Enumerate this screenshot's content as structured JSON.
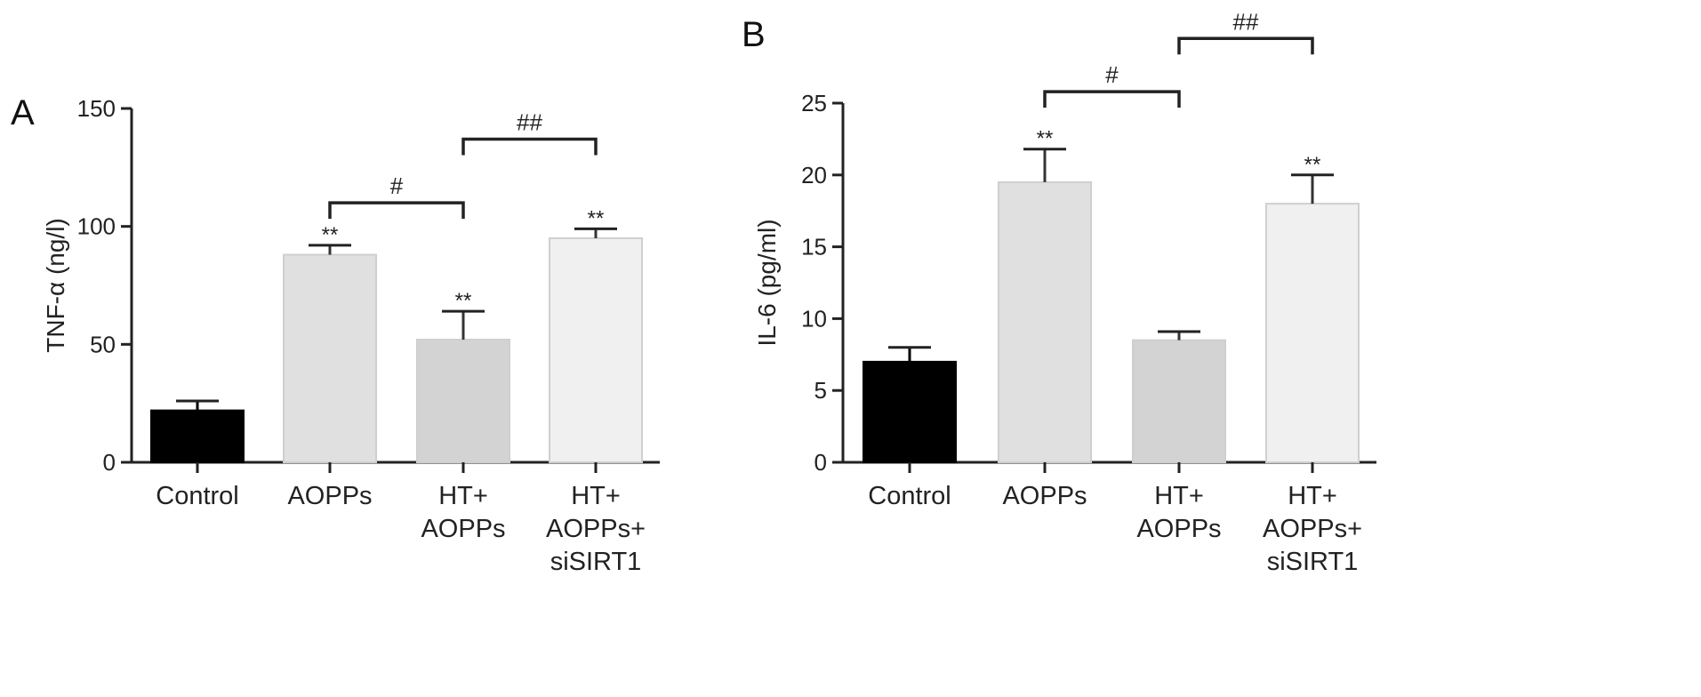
{
  "chart_data": [
    {
      "type": "bar",
      "panel": "A",
      "ylabel": "TNF-α (ng/l)",
      "ylim": [
        0,
        150
      ],
      "yticks": [
        0,
        50,
        100,
        150
      ],
      "categories": [
        [
          "Control"
        ],
        [
          "AOPPs"
        ],
        [
          "HT+",
          "AOPPs"
        ],
        [
          "HT+",
          "AOPPs+",
          "siSIRT1"
        ]
      ],
      "values": [
        22,
        88,
        52,
        95
      ],
      "errors": [
        4,
        4,
        12,
        4
      ],
      "bar_colors": [
        "#000000",
        "#e0e0e0",
        "#d3d3d3",
        "#f0f0f0"
      ],
      "significance": [
        "",
        "**",
        "**",
        "**"
      ],
      "brackets": [
        {
          "from": 1,
          "to": 2,
          "label": "#",
          "y": 110
        },
        {
          "from": 2,
          "to": 3,
          "label": "##",
          "y": 137
        }
      ]
    },
    {
      "type": "bar",
      "panel": "B",
      "ylabel": "IL-6 (pg/ml)",
      "ylim": [
        0,
        25
      ],
      "yticks": [
        0,
        5,
        10,
        15,
        20,
        25
      ],
      "categories": [
        [
          "Control"
        ],
        [
          "AOPPs"
        ],
        [
          "HT+",
          "AOPPs"
        ],
        [
          "HT+",
          "AOPPs+",
          "siSIRT1"
        ]
      ],
      "values": [
        7.0,
        19.5,
        8.5,
        18.0
      ],
      "errors": [
        1.0,
        2.3,
        0.6,
        2.0
      ],
      "bar_colors": [
        "#000000",
        "#e0e0e0",
        "#d3d3d3",
        "#f0f0f0"
      ],
      "significance": [
        "",
        "**",
        "",
        "**"
      ],
      "brackets": [
        {
          "from": 1,
          "to": 2,
          "label": "#",
          "y": 25.8
        },
        {
          "from": 2,
          "to": 3,
          "label": "##",
          "y": 29.5
        }
      ]
    }
  ]
}
